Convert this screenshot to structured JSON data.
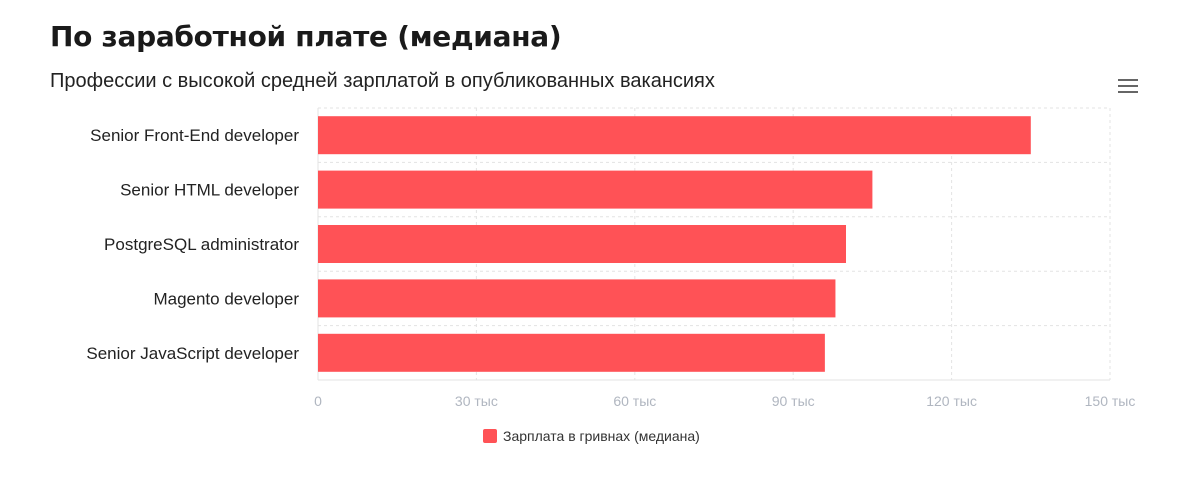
{
  "header": {
    "title": "По заработной плате (медиана)",
    "subtitle": "Профессии с высокой средней зарплатой в опубликованных вакансиях"
  },
  "menu": {
    "icon": "hamburger-menu-icon"
  },
  "colors": {
    "bar": "#ff5256",
    "grid": "#e3e3e3",
    "tick_text": "#b0b6c0",
    "category_text": "#222222"
  },
  "chart_data": {
    "type": "bar",
    "orientation": "horizontal",
    "categories": [
      "Senior Front-End developer",
      "Senior HTML developer",
      "PostgreSQL administrator",
      "Magento developer",
      "Senior JavaScript developer"
    ],
    "series": [
      {
        "name": "Зарплата в гривнах (медиана)",
        "values": [
          135000,
          105000,
          100000,
          98000,
          96000
        ]
      }
    ],
    "xlim": [
      0,
      150000
    ],
    "x_ticks": [
      0,
      30000,
      60000,
      90000,
      120000,
      150000
    ],
    "x_tick_labels": [
      "0",
      "30 тыс",
      "60 тыс",
      "90 тыс",
      "120 тыс",
      "150 тыс"
    ],
    "grid": true,
    "legend_position": "bottom-center"
  }
}
